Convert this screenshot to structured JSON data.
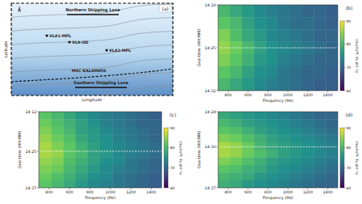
{
  "map": {
    "label": "(a)",
    "x_label": "Longitude",
    "y_label": "Latitude",
    "features": [
      {
        "name": "Northern Shipping Lane",
        "type": "lane"
      },
      {
        "name": "VLA1-MPL",
        "type": "array"
      },
      {
        "name": "VLA-UD",
        "type": "array"
      },
      {
        "name": "VLA2-MPL",
        "type": "array"
      },
      {
        "name": "MSC KALAMATA",
        "type": "track"
      },
      {
        "name": "Southern Shipping Lane",
        "type": "lane"
      }
    ]
  },
  "chart_data": [
    {
      "type": "heatmap",
      "title": "(b)",
      "x_label": "Frequency (Hz)",
      "y_label": "Geo-time (HH:MM)",
      "xlim": [
        300,
        1500
      ],
      "xticks": [
        400,
        600,
        800,
        1000,
        1200,
        1400
      ],
      "ylim": [
        858,
        872
      ],
      "yticks": [
        {
          "value": 858,
          "label": "14:18"
        },
        {
          "value": 865,
          "label": "14:25"
        },
        {
          "value": 872,
          "label": "14:32"
        }
      ],
      "x": [
        360,
        480,
        600,
        720,
        840,
        960,
        1080,
        1200,
        1320,
        1440
      ],
      "y": [
        859,
        861,
        863,
        865,
        867,
        869,
        871
      ],
      "cells": [
        [
          80,
          78,
          76,
          74,
          73,
          72,
          71,
          70,
          70,
          69
        ],
        [
          82,
          80,
          77,
          75,
          74,
          72,
          71,
          71,
          70,
          69
        ],
        [
          84,
          81,
          78,
          76,
          74,
          73,
          72,
          71,
          70,
          70
        ],
        [
          85,
          83,
          80,
          77,
          75,
          74,
          73,
          72,
          71,
          70
        ],
        [
          84,
          82,
          79,
          76,
          75,
          73,
          72,
          71,
          70,
          70
        ],
        [
          82,
          80,
          77,
          75,
          74,
          72,
          71,
          70,
          70,
          69
        ],
        [
          80,
          78,
          76,
          74,
          73,
          72,
          71,
          70,
          69,
          69
        ]
      ],
      "hline": 865,
      "colorbar": {
        "label": "RL (dB Re 1μPa²/Hz)",
        "range": [
          60,
          90
        ],
        "ticks": [
          60,
          70,
          80,
          90
        ]
      }
    },
    {
      "type": "heatmap",
      "title": "(c)",
      "x_label": "Frequency (Hz)",
      "y_label": "Geo-time (HH:MM)",
      "xlim": [
        300,
        1500
      ],
      "xticks": [
        400,
        600,
        800,
        1000,
        1200,
        1400
      ],
      "ylim": [
        852,
        877
      ],
      "yticks": [
        {
          "value": 852,
          "label": "14:12"
        },
        {
          "value": 865,
          "label": "14:25"
        },
        {
          "value": 877,
          "label": "14:37"
        }
      ],
      "x": [
        360,
        480,
        600,
        720,
        840,
        960,
        1080,
        1200,
        1320,
        1440
      ],
      "y": [
        853.25,
        855.75,
        858.25,
        860.75,
        863.25,
        865.75,
        868.25,
        870.75,
        873.25,
        875.75
      ],
      "cells": [
        [
          82,
          80,
          78,
          76,
          74,
          73,
          72,
          71,
          70,
          69
        ],
        [
          83,
          81,
          79,
          77,
          75,
          73,
          72,
          71,
          70,
          70
        ],
        [
          84,
          82,
          80,
          77,
          76,
          74,
          73,
          72,
          71,
          70
        ],
        [
          85,
          83,
          81,
          78,
          76,
          75,
          73,
          72,
          71,
          70
        ],
        [
          86,
          84,
          82,
          79,
          77,
          75,
          74,
          73,
          72,
          71
        ],
        [
          86,
          85,
          82,
          80,
          77,
          76,
          74,
          73,
          72,
          71
        ],
        [
          85,
          84,
          81,
          79,
          77,
          75,
          74,
          72,
          71,
          70
        ],
        [
          84,
          83,
          80,
          78,
          76,
          74,
          73,
          72,
          71,
          70
        ],
        [
          83,
          81,
          79,
          77,
          75,
          74,
          72,
          71,
          70,
          69
        ],
        [
          82,
          80,
          78,
          76,
          74,
          73,
          72,
          71,
          70,
          69
        ]
      ],
      "hline": 865,
      "colorbar": {
        "label": "RL (dB Re 1μPa²/Hz)",
        "range": [
          60,
          90
        ],
        "ticks": [
          60,
          70,
          80,
          90
        ]
      }
    },
    {
      "type": "heatmap",
      "title": "(d)",
      "x_label": "Frequency (Hz)",
      "y_label": "Geo-time (HH:MM)",
      "xlim": [
        300,
        1500
      ],
      "xticks": [
        400,
        600,
        800,
        1000,
        1200,
        1400
      ],
      "ylim": [
        864,
        877
      ],
      "yticks": [
        {
          "value": 864,
          "label": "14:24"
        },
        {
          "value": 870,
          "label": "14:30"
        },
        {
          "value": 877,
          "label": "14:37"
        }
      ],
      "x": [
        360,
        480,
        600,
        720,
        840,
        960,
        1080,
        1200,
        1320,
        1440
      ],
      "y": [
        864.65,
        865.95,
        867.25,
        868.55,
        869.85,
        871.15,
        872.45,
        873.75,
        875.05,
        876.35
      ],
      "cells": [
        [
          78,
          77,
          76,
          75,
          74,
          73,
          72,
          71,
          70,
          70
        ],
        [
          80,
          79,
          77,
          76,
          75,
          74,
          73,
          72,
          71,
          70
        ],
        [
          82,
          81,
          79,
          77,
          76,
          75,
          74,
          73,
          72,
          71
        ],
        [
          84,
          83,
          81,
          79,
          77,
          76,
          75,
          74,
          73,
          72
        ],
        [
          86,
          85,
          83,
          80,
          78,
          77,
          76,
          75,
          74,
          73
        ],
        [
          86,
          85,
          83,
          81,
          79,
          77,
          76,
          75,
          74,
          73
        ],
        [
          84,
          83,
          81,
          79,
          77,
          76,
          75,
          74,
          73,
          72
        ],
        [
          82,
          81,
          79,
          78,
          76,
          75,
          74,
          73,
          72,
          71
        ],
        [
          80,
          79,
          78,
          76,
          75,
          74,
          73,
          72,
          71,
          70
        ],
        [
          79,
          78,
          76,
          75,
          74,
          73,
          72,
          71,
          70,
          70
        ]
      ],
      "hline": 870,
      "colorbar": {
        "label": "RL (dB Re 1μPa²/Hz)",
        "range": [
          60,
          90
        ],
        "ticks": [
          60,
          70,
          80,
          90
        ]
      }
    }
  ]
}
